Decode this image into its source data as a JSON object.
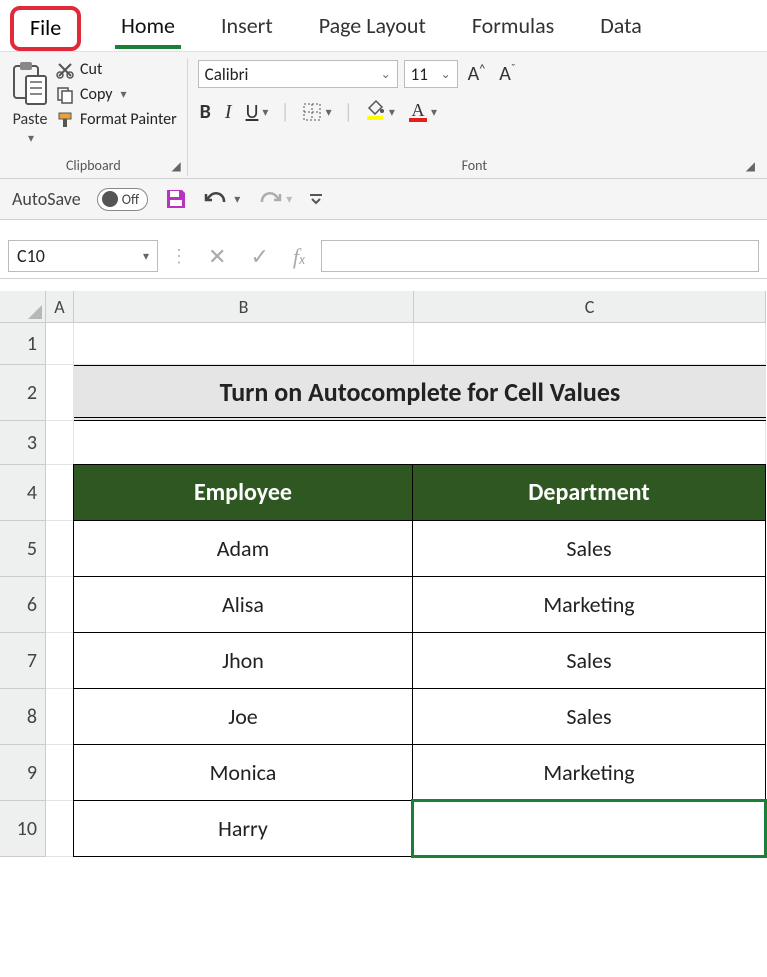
{
  "tabs": {
    "file": "File",
    "home": "Home",
    "insert": "Insert",
    "page_layout": "Page Layout",
    "formulas": "Formulas",
    "data": "Data"
  },
  "clipboard": {
    "paste": "Paste",
    "cut": "Cut",
    "copy": "Copy",
    "format_painter": "Format Painter",
    "group_label": "Clipboard"
  },
  "font": {
    "name": "Calibri",
    "size": "11",
    "group_label": "Font",
    "bold": "B",
    "italic": "I",
    "underline": "U",
    "accent_color": "#ffff00",
    "font_color": "#e81e1e"
  },
  "qat": {
    "autosave_label": "AutoSave",
    "autosave_state": "Off",
    "save_color": "#b933c1"
  },
  "name_box": "C10",
  "formula_value": "",
  "columns": [
    "A",
    "B",
    "C"
  ],
  "rows": [
    "1",
    "2",
    "3",
    "4",
    "5",
    "6",
    "7",
    "8",
    "9",
    "10"
  ],
  "sheet": {
    "title": "Turn on Autocomplete for Cell Values",
    "headers": {
      "b": "Employee",
      "c": "Department"
    },
    "data": [
      {
        "b": "Adam",
        "c": "Sales"
      },
      {
        "b": "Alisa",
        "c": "Marketing"
      },
      {
        "b": "Jhon",
        "c": "Sales"
      },
      {
        "b": "Joe",
        "c": "Sales"
      },
      {
        "b": "Monica",
        "c": "Marketing"
      },
      {
        "b": "Harry",
        "c": ""
      }
    ],
    "header_bg": "#2f5721",
    "header_fg": "#ffffff",
    "title_bg": "#e5e5e5"
  },
  "highlight": {
    "border_color": "#e02a3a"
  }
}
